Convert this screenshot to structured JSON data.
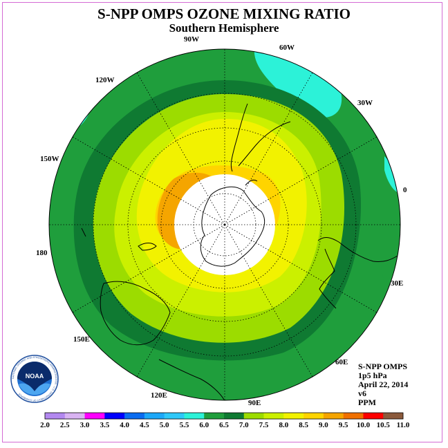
{
  "title": "S-NPP OMPS OZONE MIXING RATIO",
  "subtitle": "Southern Hemisphere",
  "info": {
    "product": "S-NPP OMPS",
    "level": "1p5 hPa",
    "date": "April 22, 2014",
    "version": "v6",
    "units": "PPM"
  },
  "logo": {
    "text": "NOAA",
    "ring_text": "NATIONAL OCEANIC AND ATMOSPHERIC ADMINISTRATION · U.S. DEPARTMENT OF COMMERCE"
  },
  "longitude_labels": [
    "0",
    "30W",
    "60W",
    "90W",
    "120W",
    "150W",
    "180",
    "150E",
    "120E",
    "90E",
    "60E",
    "30E"
  ],
  "colorbar": {
    "ticks": [
      "2.0",
      "2.5",
      "3.0",
      "3.5",
      "4.0",
      "4.5",
      "5.0",
      "5.5",
      "6.0",
      "6.5",
      "7.0",
      "7.5",
      "8.0",
      "8.5",
      "9.0",
      "9.5",
      "10.0",
      "10.5",
      "11.0"
    ],
    "colors": [
      "#b388f0",
      "#d9b3f2",
      "#ff00ff",
      "#0000ff",
      "#0a6cf0",
      "#1ca8f8",
      "#2ec8f8",
      "#2cf2d8",
      "#1f9e3c",
      "#0f7a32",
      "#9cdc00",
      "#cbf000",
      "#f2f200",
      "#ffd400",
      "#f5a500",
      "#f07000",
      "#ff0000",
      "#8b5a3c"
    ]
  },
  "colors": {
    "ppm_6_0": "#1f9e3c",
    "ppm_6_5": "#0f7a32",
    "ppm_7_0": "#9cdc00",
    "ppm_7_5": "#cbf000",
    "ppm_8_0": "#f2f200",
    "ppm_8_5": "#ffd400",
    "ppm_9_0": "#f5a500",
    "ppm_5_5": "#2cf2d8",
    "frame": "#d46ad4"
  }
}
